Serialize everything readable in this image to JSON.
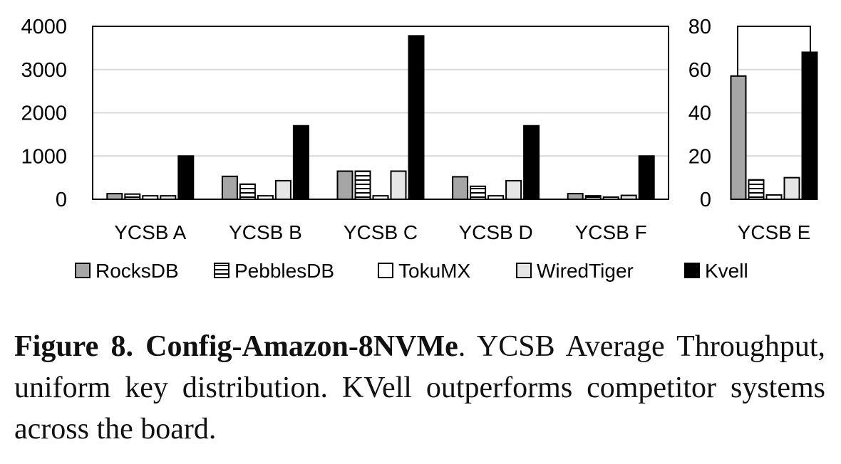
{
  "chart_data": [
    {
      "type": "bar",
      "categories": [
        "YCSB A",
        "YCSB B",
        "YCSB C",
        "YCSB D",
        "YCSB F"
      ],
      "series": [
        {
          "name": "RocksDB",
          "values": [
            130,
            530,
            650,
            520,
            130
          ]
        },
        {
          "name": "PebblesDB",
          "values": [
            120,
            350,
            650,
            300,
            80
          ]
        },
        {
          "name": "TokuMX",
          "values": [
            80,
            80,
            80,
            80,
            50
          ]
        },
        {
          "name": "WiredTiger",
          "values": [
            80,
            430,
            650,
            430,
            90
          ]
        },
        {
          "name": "Kvell",
          "values": [
            1000,
            1700,
            3780,
            1700,
            1000
          ]
        }
      ],
      "ylim": [
        0,
        4000
      ],
      "yticks": [
        "0",
        "1000",
        "2000",
        "3000",
        "4000"
      ],
      "grid": true
    },
    {
      "type": "bar",
      "categories": [
        "YCSB E"
      ],
      "series": [
        {
          "name": "RocksDB",
          "values": [
            57
          ]
        },
        {
          "name": "PebblesDB",
          "values": [
            9
          ]
        },
        {
          "name": "TokuMX",
          "values": [
            2
          ]
        },
        {
          "name": "WiredTiger",
          "values": [
            10
          ]
        },
        {
          "name": "Kvell",
          "values": [
            68
          ]
        }
      ],
      "ylim": [
        0,
        80
      ],
      "yticks": [
        "0",
        "20",
        "40",
        "60",
        "80"
      ],
      "grid": true
    }
  ],
  "legend": {
    "placement": "bottom",
    "entries": [
      "RocksDB",
      "PebblesDB",
      "TokuMX",
      "WiredTiger",
      "Kvell"
    ]
  },
  "styles": {
    "RocksDB": "#a6a6a6",
    "PebblesDB": "#ffffff",
    "TokuMX": "#ffffff",
    "WiredTiger": "#e6e6e6",
    "Kvell": "#000000"
  },
  "caption": {
    "label": "Figure 8. Config-Amazon-8NVMe",
    "text": ". YCSB Average Throughput, uniform key distribution. KVell outperforms competitor systems across the board."
  }
}
